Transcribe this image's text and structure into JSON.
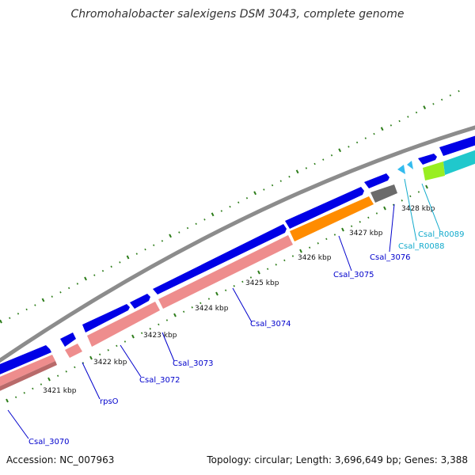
{
  "title": "Chromohalobacter salexigens DSM 3043, complete genome",
  "footer": {
    "accession": "Accession: NC_007963",
    "topology": "Topology: circular; Length: 3,696,649 bp; Genes: 3,388"
  },
  "colors": {
    "backbone": "#8c8c8c",
    "forward_cds": "#0000e6",
    "reverse_gene": "#ee8d8d",
    "orange_feature": "#ff8c00",
    "gray_feature": "#6b6b6b",
    "trna": "#33bbee",
    "cyan_feature": "#20c8cc",
    "green_feature": "#99ee22",
    "tick": "#2d7d1a",
    "label_blue": "#0000cc",
    "label_cyan": "#11aacc"
  },
  "scale": {
    "unit": "kbp",
    "ticks": [
      {
        "label": "3421 kbp"
      },
      {
        "label": "3422 kbp"
      },
      {
        "label": "3423 kbp"
      },
      {
        "label": "3424 kbp"
      },
      {
        "label": "3425 kbp"
      },
      {
        "label": "3426 kbp"
      },
      {
        "label": "3427 kbp"
      },
      {
        "label": "3428 kbp"
      }
    ]
  },
  "gene_labels": [
    {
      "text": "Csal_3070",
      "color": "blue"
    },
    {
      "text": "rpsO",
      "color": "blue"
    },
    {
      "text": "Csal_3072",
      "color": "blue"
    },
    {
      "text": "Csal_3073",
      "color": "blue"
    },
    {
      "text": "Csal_3074",
      "color": "blue"
    },
    {
      "text": "Csal_3075",
      "color": "blue"
    },
    {
      "text": "Csal_3076",
      "color": "blue"
    },
    {
      "text": "Csal_R0088",
      "color": "cyan"
    },
    {
      "text": "Csal_R0089",
      "color": "cyan"
    }
  ]
}
